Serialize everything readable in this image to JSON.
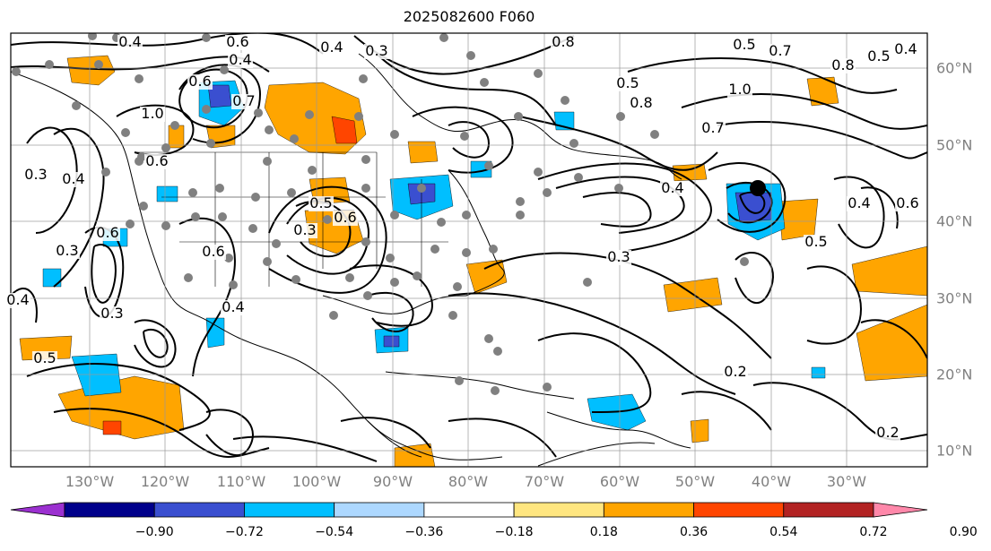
{
  "title": "2025082600 F060",
  "lon_labels": [
    "130°W",
    "120°W",
    "110°W",
    "100°W",
    "90°W",
    "80°W",
    "70°W",
    "60°W",
    "50°W",
    "40°W",
    "30°W"
  ],
  "lat_labels": [
    "60°N",
    "50°N",
    "40°N",
    "30°N",
    "20°N",
    "10°N"
  ],
  "colorbar": {
    "ticks": [
      "−0.90",
      "−0.72",
      "−0.54",
      "−0.36",
      "−0.18",
      "0.18",
      "0.36",
      "0.54",
      "0.72",
      "0.90"
    ],
    "colors": [
      "#9b30d0",
      "#00008b",
      "#3a4fd0",
      "#00bfff",
      "#add8ff",
      "#ffffff",
      "#ffe680",
      "#ffa500",
      "#ff4500",
      "#b22222",
      "#ff88aa"
    ]
  },
  "contour_labels": [
    "0.4",
    "0.6",
    "0.4",
    "0.4",
    "0.3",
    "0.8",
    "0.5",
    "0.4",
    "0.5",
    "0.8",
    "0.7",
    "1.0",
    "0.7",
    "1.0",
    "0.6",
    "0.7",
    "0.8",
    "0.5",
    "0.6",
    "0.3",
    "0.4",
    "0.3",
    "0.6",
    "0.5",
    "0.4",
    "0.3",
    "0.5",
    "0.3",
    "0.6",
    "0.4",
    "0.6",
    "0.2",
    "0.4",
    "0.4",
    "0.6",
    "0.5",
    "0.3",
    "0.2"
  ],
  "colors": {
    "positive": "#ffa500",
    "positive_strong": "#ff4500",
    "negative": "#00bfff",
    "negative_strong": "#3a4fd0",
    "station": "#808080"
  }
}
